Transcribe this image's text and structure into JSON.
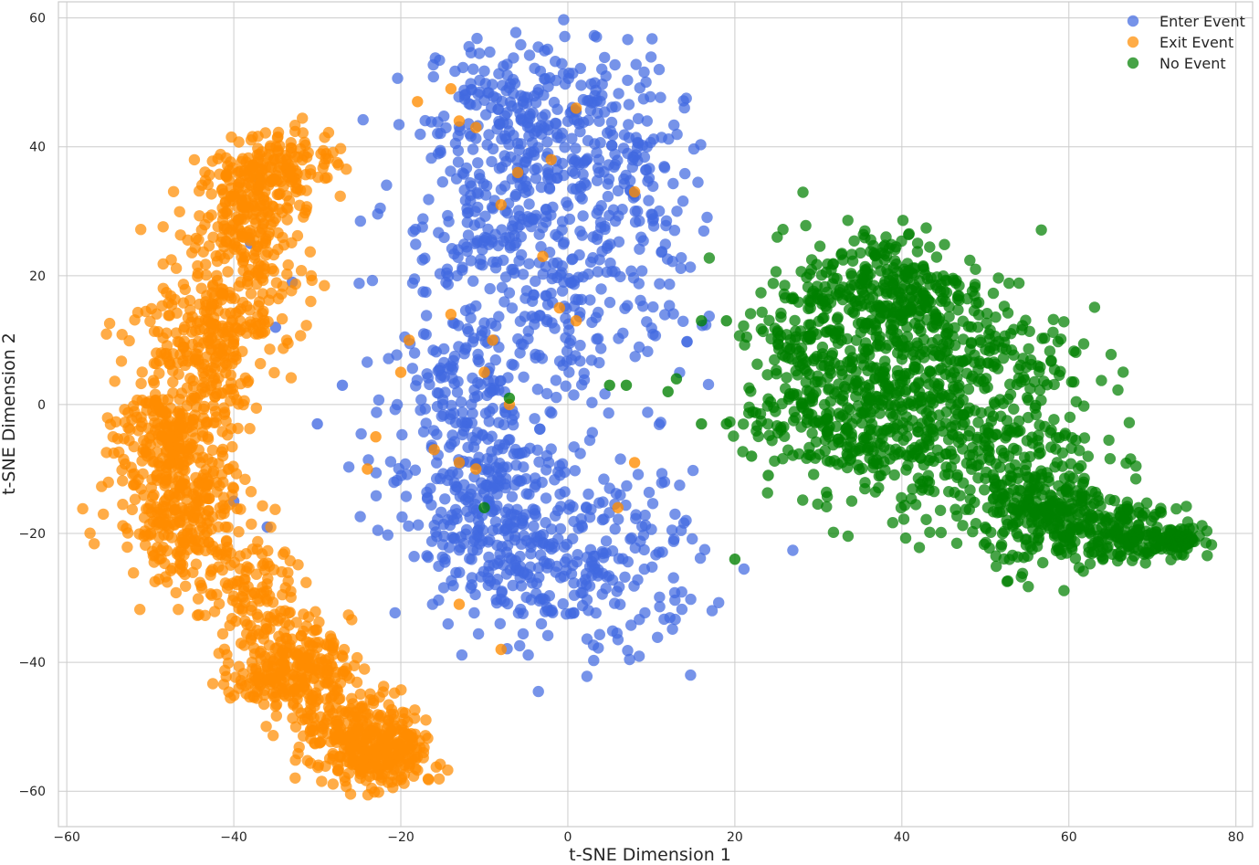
{
  "chart_data": {
    "type": "scatter",
    "title": "",
    "xlabel": "t-SNE Dimension 1",
    "ylabel": "t-SNE Dimension 2",
    "xlim": [
      -61,
      82
    ],
    "ylim": [
      -65.5,
      62.5
    ],
    "xticks": [
      -60,
      -40,
      -20,
      0,
      20,
      40,
      60,
      80
    ],
    "yticks": [
      -60,
      -40,
      -20,
      0,
      20,
      40,
      60
    ],
    "grid": true,
    "legend_position": "top-right",
    "series": [
      {
        "name": "Enter Event",
        "color": "#4169e1",
        "points_approx": 1400,
        "clusters": [
          {
            "cx": -5,
            "cy": 45,
            "sx": 6,
            "sy": 6,
            "weight": 0.15
          },
          {
            "cx": 5,
            "cy": 38,
            "sx": 4.5,
            "sy": 8,
            "weight": 0.11
          },
          {
            "cx": -10,
            "cy": 28,
            "sx": 6,
            "sy": 7,
            "weight": 0.11
          },
          {
            "cx": 0,
            "cy": 15,
            "sx": 8,
            "sy": 10,
            "weight": 0.17
          },
          {
            "cx": -12,
            "cy": 2,
            "sx": 5,
            "sy": 6,
            "weight": 0.09
          },
          {
            "cx": -10,
            "cy": -10,
            "sx": 6,
            "sy": 5,
            "weight": 0.09
          },
          {
            "cx": 2,
            "cy": -25,
            "sx": 7,
            "sy": 7,
            "weight": 0.18
          },
          {
            "cx": -10,
            "cy": -22,
            "sx": 5,
            "sy": 6,
            "weight": 0.1
          }
        ],
        "outliers": [
          [
            -27,
            3
          ],
          [
            -30,
            -3
          ],
          [
            -38,
            25
          ],
          [
            -37,
            35
          ],
          [
            -33,
            19
          ],
          [
            -35,
            12
          ],
          [
            -40,
            -15
          ],
          [
            -36,
            -19
          ]
        ]
      },
      {
        "name": "Exit Event",
        "color": "#ff8c00",
        "points_approx": 1900,
        "clusters": [
          {
            "cx": -38,
            "cy": 32,
            "sx": 3,
            "sy": 4,
            "weight": 0.09
          },
          {
            "cx": -33,
            "cy": 38,
            "sx": 3,
            "sy": 2.5,
            "weight": 0.05
          },
          {
            "cx": -39,
            "cy": 20,
            "sx": 4,
            "sy": 6,
            "weight": 0.09
          },
          {
            "cx": -44,
            "cy": 10,
            "sx": 4,
            "sy": 5,
            "weight": 0.1
          },
          {
            "cx": -47,
            "cy": -5,
            "sx": 3.5,
            "sy": 5,
            "weight": 0.14
          },
          {
            "cx": -46,
            "cy": -18,
            "sx": 4,
            "sy": 5,
            "weight": 0.13
          },
          {
            "cx": -38,
            "cy": -30,
            "sx": 3.5,
            "sy": 4,
            "weight": 0.06
          },
          {
            "cx": -33,
            "cy": -41,
            "sx": 3.5,
            "sy": 3.5,
            "weight": 0.14
          },
          {
            "cx": -25,
            "cy": -52,
            "sx": 3.5,
            "sy": 3.5,
            "weight": 0.14
          },
          {
            "cx": -21,
            "cy": -55,
            "sx": 2,
            "sy": 3,
            "weight": 0.06
          }
        ],
        "outliers": [
          [
            -18,
            47
          ],
          [
            -14,
            49
          ],
          [
            -13,
            44
          ],
          [
            -11,
            43
          ],
          [
            -8,
            31
          ],
          [
            -6,
            36
          ],
          [
            -3,
            23
          ],
          [
            -1,
            15
          ],
          [
            1,
            13
          ],
          [
            -14,
            14
          ],
          [
            -9,
            10
          ],
          [
            -10,
            5
          ],
          [
            -19,
            10
          ],
          [
            -23,
            -5
          ],
          [
            -24,
            -10
          ],
          [
            -16,
            -7
          ],
          [
            -13,
            -9
          ],
          [
            -11,
            -10
          ],
          [
            -8,
            -38
          ],
          [
            -13,
            -31
          ],
          [
            -7,
            0
          ],
          [
            1,
            46
          ],
          [
            -2,
            38
          ],
          [
            8,
            33
          ],
          [
            6,
            -16
          ],
          [
            8,
            -9
          ],
          [
            -20,
            5
          ]
        ]
      },
      {
        "name": "No Event",
        "color": "#008000",
        "points_approx": 1700,
        "clusters": [
          {
            "cx": 38,
            "cy": 18,
            "sx": 5,
            "sy": 5,
            "weight": 0.14
          },
          {
            "cx": 44,
            "cy": 8,
            "sx": 8,
            "sy": 7,
            "weight": 0.22
          },
          {
            "cx": 33,
            "cy": -2,
            "sx": 6,
            "sy": 6,
            "weight": 0.17
          },
          {
            "cx": 50,
            "cy": -8,
            "sx": 7,
            "sy": 6,
            "weight": 0.15
          },
          {
            "cx": 58,
            "cy": -18,
            "sx": 4,
            "sy": 4,
            "weight": 0.14
          },
          {
            "cx": 67,
            "cy": -20,
            "sx": 3,
            "sy": 2,
            "weight": 0.08
          },
          {
            "cx": 73,
            "cy": -21,
            "sx": 1.5,
            "sy": 1,
            "weight": 0.05
          },
          {
            "cx": 28,
            "cy": 10,
            "sx": 3,
            "sy": 5,
            "weight": 0.05
          }
        ],
        "outliers": [
          [
            16,
            13
          ],
          [
            19,
            13
          ],
          [
            16,
            -3
          ],
          [
            19,
            -3
          ],
          [
            20,
            -24
          ],
          [
            12,
            2
          ],
          [
            13,
            4
          ],
          [
            7,
            3
          ],
          [
            5,
            3
          ],
          [
            -7,
            1
          ],
          [
            -10,
            -16
          ],
          [
            22,
            -8
          ],
          [
            24,
            -11
          ]
        ]
      }
    ]
  }
}
